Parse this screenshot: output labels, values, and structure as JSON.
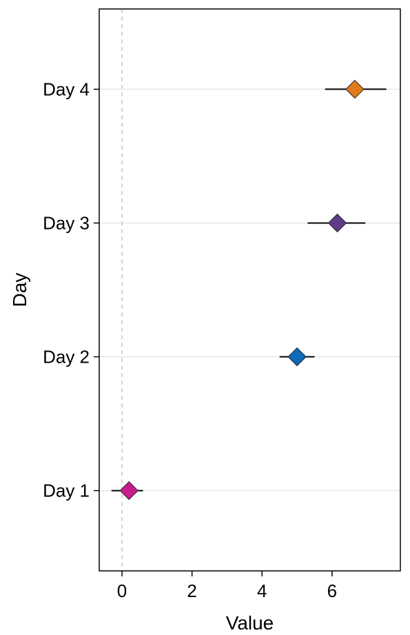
{
  "chart_data": {
    "type": "scatter",
    "title": "",
    "xlabel": "Value",
    "ylabel": "Day",
    "xlim": [
      -0.65,
      7.95
    ],
    "x_ticks": [
      0,
      2,
      4,
      6
    ],
    "categories": [
      "Day 1",
      "Day 2",
      "Day 3",
      "Day 4"
    ],
    "grid": "horizontal major lines only",
    "reference_line": {
      "x": 0,
      "style": "dashed",
      "color": "#c8c8c8"
    },
    "points": [
      {
        "category": "Day 1",
        "x": 0.2,
        "low": -0.3,
        "high": 0.6,
        "color": "#c71c8c"
      },
      {
        "category": "Day 2",
        "x": 5.0,
        "low": 4.5,
        "high": 5.5,
        "color": "#0c6bb8"
      },
      {
        "category": "Day 3",
        "x": 6.15,
        "low": 5.3,
        "high": 6.95,
        "color": "#5e3d86"
      },
      {
        "category": "Day 4",
        "x": 6.65,
        "low": 5.8,
        "high": 7.55,
        "color": "#e07a1b"
      }
    ]
  }
}
